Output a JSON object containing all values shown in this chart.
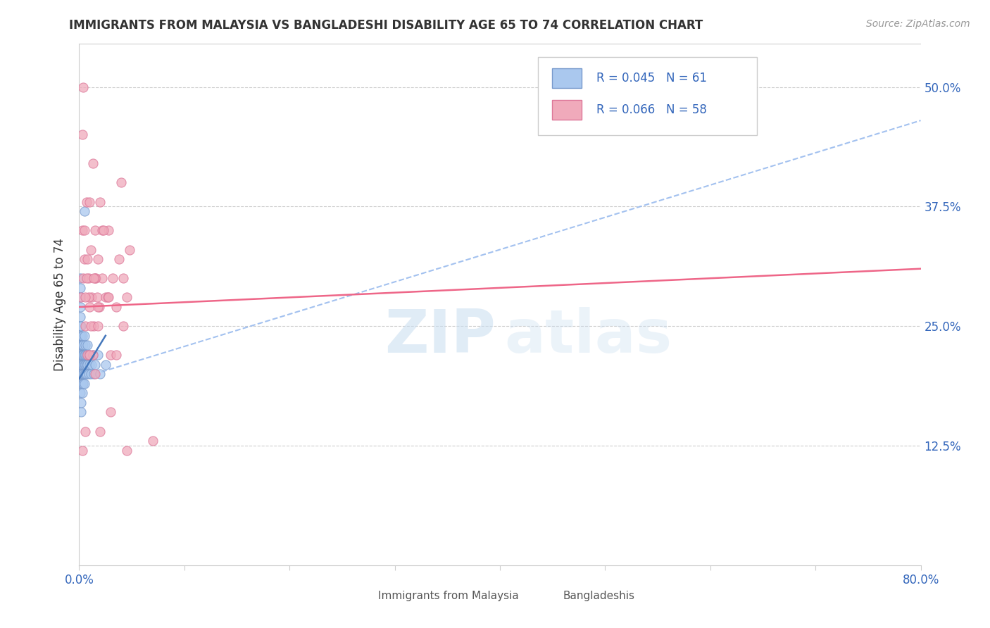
{
  "title": "IMMIGRANTS FROM MALAYSIA VS BANGLADESHI DISABILITY AGE 65 TO 74 CORRELATION CHART",
  "source": "Source: ZipAtlas.com",
  "ylabel": "Disability Age 65 to 74",
  "ylabel_ticks": [
    "12.5%",
    "25.0%",
    "37.5%",
    "50.0%"
  ],
  "ylabel_tick_vals": [
    0.125,
    0.25,
    0.375,
    0.5
  ],
  "xmin": 0.0,
  "xmax": 0.8,
  "ymin": 0.0,
  "ymax": 0.545,
  "legend_r1": "R = 0.045",
  "legend_n1": "N = 61",
  "legend_r2": "R = 0.066",
  "legend_n2": "N = 58",
  "color_malaysia": "#aac8ee",
  "color_bangladesh": "#f0aabb",
  "color_malaysia_edge": "#7799cc",
  "color_bangladesh_edge": "#dd7799",
  "trendline_malaysia_dashed": "#99bbee",
  "trendline_malaysia_solid": "#4477bb",
  "trendline_bangladesh_solid": "#ee6688",
  "watermark_zip": "#c8ddf0",
  "watermark_atlas": "#c8ddf0",
  "malaysia_x": [
    0.001,
    0.001,
    0.001,
    0.001,
    0.001,
    0.001,
    0.001,
    0.001,
    0.001,
    0.001,
    0.001,
    0.001,
    0.002,
    0.002,
    0.002,
    0.002,
    0.002,
    0.002,
    0.002,
    0.002,
    0.002,
    0.002,
    0.003,
    0.003,
    0.003,
    0.003,
    0.003,
    0.003,
    0.003,
    0.004,
    0.004,
    0.004,
    0.004,
    0.004,
    0.005,
    0.005,
    0.005,
    0.005,
    0.005,
    0.006,
    0.006,
    0.006,
    0.006,
    0.007,
    0.007,
    0.007,
    0.008,
    0.008,
    0.009,
    0.009,
    0.01,
    0.01,
    0.011,
    0.012,
    0.013,
    0.014,
    0.015,
    0.018,
    0.02,
    0.025,
    0.005
  ],
  "malaysia_y": [
    0.21,
    0.22,
    0.23,
    0.24,
    0.25,
    0.26,
    0.27,
    0.28,
    0.29,
    0.3,
    0.18,
    0.2,
    0.21,
    0.22,
    0.23,
    0.24,
    0.25,
    0.19,
    0.2,
    0.22,
    0.16,
    0.17,
    0.21,
    0.22,
    0.23,
    0.2,
    0.19,
    0.24,
    0.18,
    0.22,
    0.21,
    0.23,
    0.2,
    0.19,
    0.22,
    0.21,
    0.2,
    0.24,
    0.19,
    0.22,
    0.21,
    0.23,
    0.2,
    0.22,
    0.21,
    0.2,
    0.23,
    0.21,
    0.22,
    0.2,
    0.21,
    0.22,
    0.2,
    0.21,
    0.22,
    0.2,
    0.21,
    0.22,
    0.2,
    0.21,
    0.37
  ],
  "bangladesh_x": [
    0.002,
    0.003,
    0.004,
    0.005,
    0.006,
    0.007,
    0.008,
    0.009,
    0.01,
    0.011,
    0.012,
    0.013,
    0.014,
    0.015,
    0.016,
    0.017,
    0.018,
    0.019,
    0.02,
    0.022,
    0.025,
    0.028,
    0.03,
    0.032,
    0.035,
    0.038,
    0.04,
    0.042,
    0.045,
    0.048,
    0.003,
    0.005,
    0.007,
    0.009,
    0.011,
    0.013,
    0.015,
    0.018,
    0.022,
    0.027,
    0.004,
    0.006,
    0.008,
    0.01,
    0.014,
    0.018,
    0.023,
    0.028,
    0.035,
    0.042,
    0.003,
    0.006,
    0.01,
    0.015,
    0.02,
    0.03,
    0.045,
    0.07
  ],
  "bangladesh_y": [
    0.28,
    0.35,
    0.3,
    0.32,
    0.25,
    0.38,
    0.22,
    0.3,
    0.27,
    0.33,
    0.28,
    0.42,
    0.25,
    0.35,
    0.3,
    0.28,
    0.32,
    0.27,
    0.38,
    0.3,
    0.28,
    0.35,
    0.22,
    0.3,
    0.27,
    0.32,
    0.4,
    0.25,
    0.28,
    0.33,
    0.45,
    0.35,
    0.3,
    0.28,
    0.25,
    0.22,
    0.3,
    0.27,
    0.35,
    0.28,
    0.5,
    0.28,
    0.32,
    0.22,
    0.3,
    0.25,
    0.35,
    0.28,
    0.22,
    0.3,
    0.12,
    0.14,
    0.38,
    0.2,
    0.14,
    0.16,
    0.12,
    0.13
  ],
  "trendline_mal_x0": 0.0,
  "trendline_mal_x1": 0.025,
  "trendline_mal_y0": 0.195,
  "trendline_mal_y1": 0.24,
  "trendline_mal_dash_x0": 0.0,
  "trendline_mal_dash_x1": 0.8,
  "trendline_mal_dash_y0": 0.195,
  "trendline_mal_dash_y1": 0.465,
  "trendline_ban_x0": 0.0,
  "trendline_ban_x1": 0.8,
  "trendline_ban_y0": 0.27,
  "trendline_ban_y1": 0.31
}
